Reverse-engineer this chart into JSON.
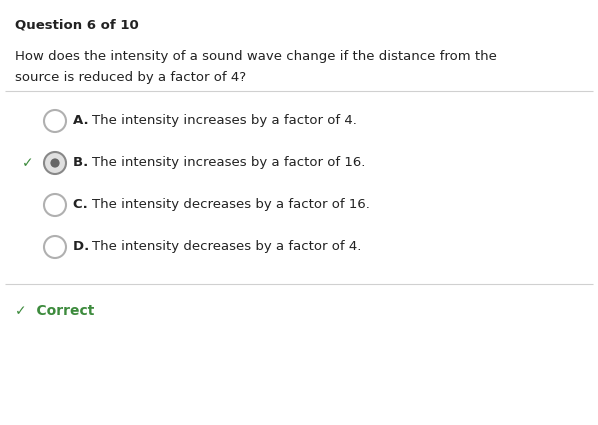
{
  "title": "Question 6 of 10",
  "question_line1": "How does the intensity of a sound wave change if the distance from the",
  "question_line2": "source is reduced by a factor of 4?",
  "options": [
    {
      "label": "A.  ",
      "text": "The intensity increases by a factor of 4.",
      "selected": false,
      "correct": false
    },
    {
      "label": "B.  ",
      "text": "The intensity increases by a factor of 16.",
      "selected": true,
      "correct": true
    },
    {
      "label": "C.  ",
      "text": "The intensity decreases by a factor of 16.",
      "selected": false,
      "correct": false
    },
    {
      "label": "D.  ",
      "text": "The intensity decreases by a factor of 4.",
      "selected": false,
      "correct": false
    }
  ],
  "footer_check": "✓",
  "footer_text": "Correct",
  "bg_color": "#ffffff",
  "text_color": "#222222",
  "green_color": "#3d8b3d",
  "circle_color": "#b0b0b0",
  "selected_outer_fill": "#e0e0e0",
  "selected_outer_edge": "#888888",
  "selected_inner_color": "#666666",
  "separator_color": "#d0d0d0",
  "title_fontsize": 9.5,
  "question_fontsize": 9.5,
  "option_fontsize": 9.5,
  "footer_fontsize": 10
}
